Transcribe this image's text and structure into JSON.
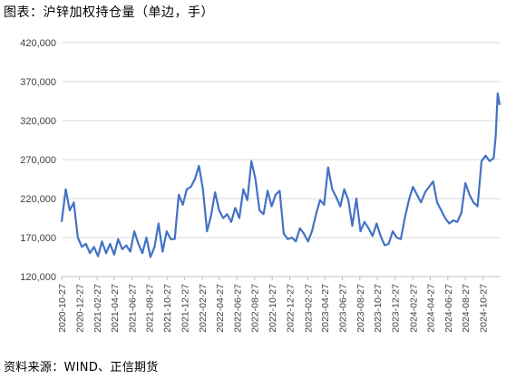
{
  "title": "图表：沪锌加权持仓量（单边，手）",
  "source": "资料来源：WIND、正信期货",
  "colors": {
    "line": "#4472C4",
    "grid": "#D9D9D9",
    "axis": "#BFBFBF",
    "text": "#404040"
  },
  "chart_data": {
    "type": "line",
    "title": "图表：沪锌加权持仓量（单边，手）",
    "xlabel": "",
    "ylabel": "",
    "ylim": [
      120000,
      420000
    ],
    "yticks": [
      "120,000",
      "170,000",
      "220,000",
      "270,000",
      "320,000",
      "370,000",
      "420,000"
    ],
    "ytick_values": [
      120000,
      170000,
      220000,
      270000,
      320000,
      370000,
      420000
    ],
    "x_range": [
      "2020-10-27",
      "2024-12-27"
    ],
    "xticks": [
      "2020-10-27",
      "2020-12-27",
      "2021-02-27",
      "2021-04-27",
      "2021-06-27",
      "2021-08-27",
      "2021-10-27",
      "2021-12-27",
      "2022-02-27",
      "2022-04-27",
      "2022-06-27",
      "2022-08-27",
      "2022-10-27",
      "2022-12-27",
      "2023-02-27",
      "2023-04-27",
      "2023-06-27",
      "2023-08-27",
      "2023-10-27",
      "2023-12-27",
      "2024-02-27",
      "2024-04-27",
      "2024-06-27",
      "2024-08-27",
      "2024-10-27"
    ],
    "grid": true,
    "legend": "none",
    "series": [
      {
        "x": [
          "2020-10-27",
          "2020-11-10",
          "2020-11-24",
          "2020-12-08",
          "2020-12-22",
          "2021-01-05",
          "2021-01-19",
          "2021-02-02",
          "2021-02-16",
          "2021-03-02",
          "2021-03-16",
          "2021-03-30",
          "2021-04-13",
          "2021-04-27",
          "2021-05-11",
          "2021-05-25",
          "2021-06-08",
          "2021-06-22",
          "2021-07-06",
          "2021-07-20",
          "2021-08-03",
          "2021-08-17",
          "2021-08-31",
          "2021-09-14",
          "2021-09-28",
          "2021-10-12",
          "2021-10-26",
          "2021-11-09",
          "2021-11-23",
          "2021-12-07",
          "2021-12-21",
          "2022-01-04",
          "2022-01-18",
          "2022-02-01",
          "2022-02-15",
          "2022-03-01",
          "2022-03-15",
          "2022-03-29",
          "2022-04-12",
          "2022-04-26",
          "2022-05-10",
          "2022-05-24",
          "2022-06-07",
          "2022-06-21",
          "2022-07-05",
          "2022-07-19",
          "2022-08-02",
          "2022-08-16",
          "2022-08-30",
          "2022-09-13",
          "2022-09-27",
          "2022-10-11",
          "2022-10-25",
          "2022-11-08",
          "2022-11-22",
          "2022-12-06",
          "2022-12-20",
          "2023-01-03",
          "2023-01-17",
          "2023-01-31",
          "2023-02-14",
          "2023-02-28",
          "2023-03-14",
          "2023-03-28",
          "2023-04-11",
          "2023-04-25",
          "2023-05-09",
          "2023-05-23",
          "2023-06-06",
          "2023-06-20",
          "2023-07-04",
          "2023-07-18",
          "2023-08-01",
          "2023-08-15",
          "2023-08-29",
          "2023-09-12",
          "2023-09-26",
          "2023-10-10",
          "2023-10-24",
          "2023-11-07",
          "2023-11-21",
          "2023-12-05",
          "2023-12-19",
          "2024-01-02",
          "2024-01-16",
          "2024-01-30",
          "2024-02-13",
          "2024-02-27",
          "2024-03-12",
          "2024-03-26",
          "2024-04-09",
          "2024-04-23",
          "2024-05-07",
          "2024-05-21",
          "2024-06-04",
          "2024-06-18",
          "2024-07-02",
          "2024-07-16",
          "2024-07-30",
          "2024-08-13",
          "2024-08-27",
          "2024-09-10",
          "2024-09-24",
          "2024-10-08",
          "2024-10-22",
          "2024-11-05",
          "2024-11-19",
          "2024-12-03",
          "2024-12-10",
          "2024-12-17",
          "2024-12-24"
        ],
        "y": [
          190000,
          232000,
          205000,
          215000,
          170000,
          158000,
          162000,
          150000,
          158000,
          146000,
          165000,
          150000,
          162000,
          148000,
          168000,
          155000,
          160000,
          152000,
          178000,
          162000,
          150000,
          170000,
          145000,
          158000,
          188000,
          152000,
          178000,
          168000,
          168000,
          225000,
          212000,
          232000,
          235000,
          245000,
          262000,
          232000,
          178000,
          198000,
          228000,
          205000,
          195000,
          200000,
          190000,
          208000,
          195000,
          232000,
          218000,
          268000,
          245000,
          205000,
          200000,
          230000,
          210000,
          225000,
          230000,
          175000,
          168000,
          170000,
          165000,
          182000,
          175000,
          165000,
          178000,
          200000,
          218000,
          212000,
          260000,
          232000,
          222000,
          210000,
          232000,
          218000,
          185000,
          220000,
          178000,
          190000,
          182000,
          172000,
          188000,
          172000,
          160000,
          162000,
          178000,
          170000,
          168000,
          195000,
          218000,
          235000,
          225000,
          215000,
          228000,
          235000,
          242000,
          215000,
          205000,
          195000,
          188000,
          192000,
          190000,
          202000,
          240000,
          225000,
          215000,
          210000,
          268000,
          275000,
          268000,
          272000,
          300000,
          355000,
          340000
        ]
      }
    ]
  }
}
